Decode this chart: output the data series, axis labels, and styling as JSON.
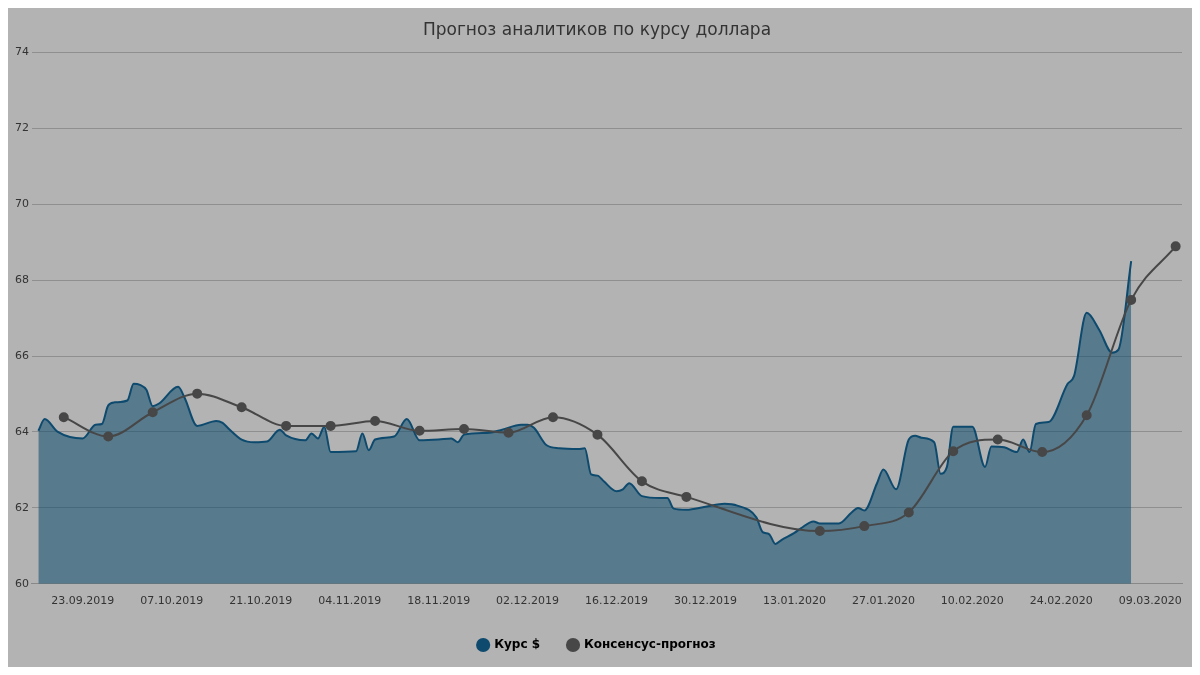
{
  "chart_data": {
    "type": "line",
    "title": "Прогноз аналитиков по курсу доллара",
    "xlim": [
      "2019-09-15",
      "2020-03-14"
    ],
    "xticks": [
      {
        "value": "2019-09-23",
        "label": "23.09.2019"
      },
      {
        "value": "2019-10-07",
        "label": "07.10.2019"
      },
      {
        "value": "2019-10-21",
        "label": "21.10.2019"
      },
      {
        "value": "2019-11-04",
        "label": "04.11.2019"
      },
      {
        "value": "2019-11-18",
        "label": "18.11.2019"
      },
      {
        "value": "2019-12-02",
        "label": "02.12.2019"
      },
      {
        "value": "2019-12-16",
        "label": "16.12.2019"
      },
      {
        "value": "2019-12-30",
        "label": "30.12.2019"
      },
      {
        "value": "2020-01-13",
        "label": "13.01.2020"
      },
      {
        "value": "2020-01-27",
        "label": "27.01.2020"
      },
      {
        "value": "2020-02-10",
        "label": "10.02.2020"
      },
      {
        "value": "2020-02-24",
        "label": "24.02.2020"
      },
      {
        "value": "2020-03-09",
        "label": "09.03.2020"
      }
    ],
    "ylim": [
      60,
      74
    ],
    "yticks": [
      60,
      62,
      64,
      66,
      68,
      70,
      72,
      74
    ],
    "grid": "y",
    "legend": "bottom",
    "series": [
      {
        "name": "Курс $",
        "type": "area",
        "color": "#0d4a6e",
        "marker": "none",
        "x": [
          "2019-09-16",
          "2019-09-17",
          "2019-09-19",
          "2019-09-23",
          "2019-09-25",
          "2019-09-26",
          "2019-09-27",
          "2019-09-28",
          "2019-09-30",
          "2019-10-01",
          "2019-10-02",
          "2019-10-03",
          "2019-10-04",
          "2019-10-05",
          "2019-10-08",
          "2019-10-09",
          "2019-10-11",
          "2019-10-14",
          "2019-10-15",
          "2019-10-16",
          "2019-10-18",
          "2019-10-20",
          "2019-10-22",
          "2019-10-24",
          "2019-10-25",
          "2019-10-28",
          "2019-10-29",
          "2019-10-30",
          "2019-10-31",
          "2019-11-01",
          "2019-11-05",
          "2019-11-06",
          "2019-11-07",
          "2019-11-08",
          "2019-11-11",
          "2019-11-13",
          "2019-11-15",
          "2019-11-18",
          "2019-11-20",
          "2019-11-21",
          "2019-11-22",
          "2019-11-26",
          "2019-11-28",
          "2019-12-01",
          "2019-12-02",
          "2019-12-03",
          "2019-12-05",
          "2019-12-07",
          "2019-12-10",
          "2019-12-11",
          "2019-12-12",
          "2019-12-13",
          "2019-12-14",
          "2019-12-16",
          "2019-12-17",
          "2019-12-18",
          "2019-12-20",
          "2019-12-23",
          "2019-12-24",
          "2019-12-25",
          "2019-12-27",
          "2019-12-30",
          "2020-01-02",
          "2020-01-04",
          "2020-01-07",
          "2020-01-08",
          "2020-01-09",
          "2020-01-10",
          "2020-01-11",
          "2020-01-13",
          "2020-01-14",
          "2020-01-16",
          "2020-01-17",
          "2020-01-20",
          "2020-01-22",
          "2020-01-23",
          "2020-01-24",
          "2020-01-26",
          "2020-01-27",
          "2020-01-29",
          "2020-01-31",
          "2020-02-01",
          "2020-02-02",
          "2020-02-04",
          "2020-02-05",
          "2020-02-06",
          "2020-02-07",
          "2020-02-10",
          "2020-02-12",
          "2020-02-13",
          "2020-02-15",
          "2020-02-17",
          "2020-02-18",
          "2020-02-19",
          "2020-02-20",
          "2020-02-22",
          "2020-02-25",
          "2020-02-26",
          "2020-02-28",
          "2020-03-01",
          "2020-03-03",
          "2020-03-04",
          "2020-03-06"
        ],
        "values": [
          64.03,
          64.34,
          64.01,
          63.83,
          64.19,
          64.21,
          64.7,
          64.78,
          64.83,
          65.27,
          65.24,
          65.11,
          64.68,
          64.75,
          65.19,
          64.91,
          64.16,
          64.29,
          64.24,
          64.08,
          63.8,
          63.73,
          63.75,
          64.06,
          63.91,
          63.78,
          63.96,
          63.83,
          64.14,
          63.47,
          63.49,
          63.96,
          63.52,
          63.8,
          63.88,
          64.34,
          63.78,
          63.8,
          63.83,
          63.73,
          63.93,
          63.98,
          64.06,
          64.19,
          64.19,
          64.11,
          63.65,
          63.57,
          63.55,
          63.57,
          62.88,
          62.85,
          62.7,
          62.44,
          62.49,
          62.65,
          62.31,
          62.26,
          62.26,
          61.98,
          61.95,
          62.03,
          62.11,
          62.06,
          61.75,
          61.36,
          61.31,
          61.05,
          61.16,
          61.34,
          61.46,
          61.64,
          61.59,
          61.59,
          61.88,
          62.0,
          61.93,
          62.65,
          63.01,
          62.49,
          63.8,
          63.9,
          63.85,
          63.73,
          62.9,
          63.08,
          64.14,
          64.14,
          63.08,
          63.62,
          63.6,
          63.47,
          63.8,
          63.47,
          64.21,
          64.26,
          65.27,
          65.47,
          67.14,
          66.68,
          66.09,
          66.17,
          68.5
        ]
      },
      {
        "name": "Консенсус-прогноз",
        "color": "#474747",
        "marker": "circle",
        "x": [
          "2019-09-20",
          "2019-09-27",
          "2019-10-04",
          "2019-10-11",
          "2019-10-18",
          "2019-10-25",
          "2019-11-01",
          "2019-11-08",
          "2019-11-15",
          "2019-11-22",
          "2019-11-29",
          "2019-12-06",
          "2019-12-13",
          "2019-12-20",
          "2019-12-27",
          "2020-01-17",
          "2020-01-24",
          "2020-01-31",
          "2020-02-07",
          "2020-02-14",
          "2020-02-21",
          "2020-02-28",
          "2020-03-06",
          "2020-03-13"
        ],
        "values": [
          64.39,
          63.88,
          64.52,
          65.01,
          64.65,
          64.16,
          64.16,
          64.29,
          64.03,
          64.08,
          63.98,
          64.39,
          63.93,
          62.7,
          62.29,
          61.39,
          61.52,
          61.88,
          63.49,
          63.8,
          63.47,
          64.44,
          67.48,
          68.89
        ]
      }
    ]
  }
}
